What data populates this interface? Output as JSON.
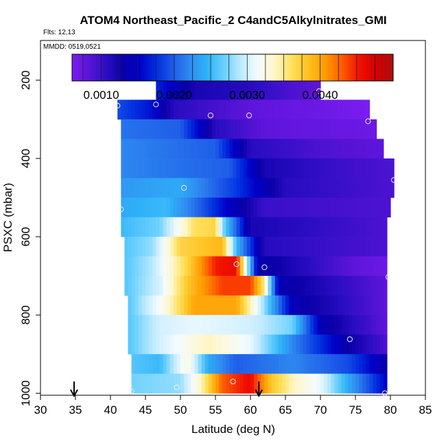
{
  "chart_data": {
    "type": "heatmap",
    "title": "ATOM4 Northeast_Pacific_2 C4andC5Alkylnitrates_GMI",
    "flights_note": "Flts: 12,13",
    "date_note": "MMDD: 0519,0521",
    "xlabel": "Latitude (deg N)",
    "ylabel": "PSXC (mbar)",
    "xlim": [
      30,
      85
    ],
    "ylim": [
      1000,
      100
    ],
    "x_ticks": [
      30,
      35,
      40,
      45,
      50,
      55,
      60,
      65,
      70,
      75,
      80,
      85
    ],
    "y_ticks": [
      200,
      400,
      600,
      800,
      1000
    ],
    "colorbar": {
      "range": [
        0.0006,
        0.005
      ],
      "tick_values": [
        0.001,
        0.002,
        0.003,
        0.004
      ],
      "tick_labels": [
        "0.0010",
        "0.0020",
        "0.0030",
        "0.0040"
      ],
      "colors": [
        "#7a1df0",
        "#5a14d8",
        "#2d0ec4",
        "#0a00a8",
        "#0000c8",
        "#0030e0",
        "#1f5ce8",
        "#2f8cf0",
        "#2fb2f8",
        "#6ad0ff",
        "#bfeaff",
        "#f4fbff",
        "#fff6c8",
        "#ffe05a",
        "#ffc020",
        "#ff9a00",
        "#ff5a00",
        "#f01000",
        "#d20000",
        "#aa1010"
      ]
    },
    "bands": [
      {
        "pressure": 225,
        "lat_start": 46.5,
        "lat_end": 70,
        "stops": [
          [
            46.5,
            0.0017
          ],
          [
            52,
            0.0012
          ],
          [
            60,
            0.0011
          ],
          [
            66,
            0.0009
          ],
          [
            70,
            0.0008
          ]
        ]
      },
      {
        "pressure": 275,
        "lat_start": 41,
        "lat_end": 77,
        "stops": [
          [
            41,
            0.0019
          ],
          [
            46,
            0.0016
          ],
          [
            49,
            0.0011
          ],
          [
            60,
            0.0008
          ],
          [
            70,
            0.0007
          ],
          [
            77,
            0.0006
          ]
        ]
      },
      {
        "pressure": 325,
        "lat_start": 41.5,
        "lat_end": 78,
        "stops": [
          [
            41.5,
            0.0021
          ],
          [
            50,
            0.002
          ],
          [
            55,
            0.0011
          ],
          [
            62,
            0.0008
          ],
          [
            78,
            0.0007
          ]
        ]
      },
      {
        "pressure": 375,
        "lat_start": 41.5,
        "lat_end": 79,
        "stops": [
          [
            41.5,
            0.0022
          ],
          [
            55,
            0.002
          ],
          [
            60,
            0.0011
          ],
          [
            70,
            0.0009
          ],
          [
            79,
            0.0008
          ]
        ]
      },
      {
        "pressure": 425,
        "lat_start": 41.5,
        "lat_end": 80.5,
        "stops": [
          [
            41.5,
            0.0022
          ],
          [
            57,
            0.002
          ],
          [
            62,
            0.0012
          ],
          [
            72,
            0.001
          ],
          [
            80.5,
            0.0009
          ]
        ]
      },
      {
        "pressure": 475,
        "lat_start": 41.5,
        "lat_end": 80.5,
        "stops": [
          [
            41.5,
            0.0023
          ],
          [
            50,
            0.0024
          ],
          [
            58,
            0.0018
          ],
          [
            65,
            0.0011
          ],
          [
            80.5,
            0.0009
          ]
        ]
      },
      {
        "pressure": 525,
        "lat_start": 41.5,
        "lat_end": 80,
        "stops": [
          [
            41.5,
            0.0024
          ],
          [
            48,
            0.0025
          ],
          [
            52,
            0.0021
          ],
          [
            56,
            0.0016
          ],
          [
            62,
            0.001
          ],
          [
            80,
            0.0009
          ]
        ]
      },
      {
        "pressure": 575,
        "lat_start": 41.5,
        "lat_end": 79.5,
        "stops": [
          [
            41.5,
            0.0025
          ],
          [
            47,
            0.0027
          ],
          [
            52,
            0.0036
          ],
          [
            55,
            0.0037
          ],
          [
            56,
            0.0028
          ],
          [
            60,
            0.0012
          ],
          [
            79.5,
            0.0009
          ]
        ]
      },
      {
        "pressure": 625,
        "lat_start": 42,
        "lat_end": 79.5,
        "stops": [
          [
            42,
            0.0026
          ],
          [
            46,
            0.0028
          ],
          [
            50,
            0.0037
          ],
          [
            56,
            0.0039
          ],
          [
            58,
            0.0025
          ],
          [
            62,
            0.0011
          ],
          [
            79.5,
            0.0009
          ]
        ]
      },
      {
        "pressure": 675,
        "lat_start": 42,
        "lat_end": 79.5,
        "stops": [
          [
            42,
            0.0026
          ],
          [
            46,
            0.0029
          ],
          [
            51,
            0.0037
          ],
          [
            55,
            0.0045
          ],
          [
            58,
            0.0046
          ],
          [
            59,
            0.0035
          ],
          [
            61,
            0.0014
          ],
          [
            75,
            0.0008
          ],
          [
            79.5,
            0.0007
          ]
        ]
      },
      {
        "pressure": 725,
        "lat_start": 42,
        "lat_end": 79.5,
        "stops": [
          [
            42,
            0.0026
          ],
          [
            47,
            0.003
          ],
          [
            51,
            0.0038
          ],
          [
            56,
            0.0044
          ],
          [
            60,
            0.0044
          ],
          [
            62,
            0.0035
          ],
          [
            64,
            0.0014
          ],
          [
            79.5,
            0.0008
          ]
        ]
      },
      {
        "pressure": 775,
        "lat_start": 42.5,
        "lat_end": 79.5,
        "stops": [
          [
            42.5,
            0.0026
          ],
          [
            48,
            0.0033
          ],
          [
            52,
            0.004
          ],
          [
            58,
            0.004
          ],
          [
            62,
            0.0028
          ],
          [
            66,
            0.0014
          ],
          [
            79.5,
            0.0008
          ]
        ]
      },
      {
        "pressure": 825,
        "lat_start": 42.5,
        "lat_end": 79.5,
        "stops": [
          [
            42.5,
            0.0026
          ],
          [
            47,
            0.003
          ],
          [
            52,
            0.0031
          ],
          [
            60,
            0.003
          ],
          [
            66,
            0.0027
          ],
          [
            70,
            0.0014
          ],
          [
            79.5,
            0.0008
          ]
        ]
      },
      {
        "pressure": 875,
        "lat_start": 42.5,
        "lat_end": 79.5,
        "stops": [
          [
            42.5,
            0.0026
          ],
          [
            47,
            0.003
          ],
          [
            54,
            0.0034
          ],
          [
            60,
            0.0031
          ],
          [
            66,
            0.0022
          ],
          [
            74,
            0.0013
          ],
          [
            79.5,
            0.0009
          ]
        ]
      },
      {
        "pressure": 925,
        "lat_start": 43,
        "lat_end": 79.5,
        "stops": [
          [
            43,
            0.0026
          ],
          [
            47,
            0.0025
          ],
          [
            51,
            0.0033
          ],
          [
            54,
            0.0024
          ],
          [
            58,
            0.002
          ],
          [
            66,
            0.0022
          ],
          [
            74,
            0.0019
          ],
          [
            79.5,
            0.0013
          ]
        ]
      },
      {
        "pressure": 975,
        "lat_start": 43,
        "lat_end": 79.5,
        "stops": [
          [
            43,
            0.0027
          ],
          [
            50,
            0.0028
          ],
          [
            53,
            0.0034
          ],
          [
            56,
            0.0043
          ],
          [
            60,
            0.0046
          ],
          [
            63,
            0.0038
          ],
          [
            66,
            0.0034
          ],
          [
            70,
            0.0031
          ],
          [
            74,
            0.0024
          ],
          [
            79.5,
            0.0015
          ]
        ]
      }
    ],
    "sample_points": [
      {
        "lat": 69.8,
        "pressure": 228
      },
      {
        "lat": 46.5,
        "pressure": 262
      },
      {
        "lat": 41.0,
        "pressure": 265
      },
      {
        "lat": 54.3,
        "pressure": 290
      },
      {
        "lat": 59.8,
        "pressure": 290
      },
      {
        "lat": 76.8,
        "pressure": 305
      },
      {
        "lat": 50.5,
        "pressure": 475
      },
      {
        "lat": 41.5,
        "pressure": 530
      },
      {
        "lat": 80.5,
        "pressure": 455
      },
      {
        "lat": 58.0,
        "pressure": 670
      },
      {
        "lat": 62.0,
        "pressure": 678
      },
      {
        "lat": 79.7,
        "pressure": 703
      },
      {
        "lat": 74.2,
        "pressure": 862
      },
      {
        "lat": 57.5,
        "pressure": 970
      },
      {
        "lat": 49.5,
        "pressure": 985
      },
      {
        "lat": 43.0,
        "pressure": 995
      },
      {
        "lat": 79.2,
        "pressure": 1000
      }
    ],
    "arrows": [
      {
        "lat": 34.8
      },
      {
        "lat": 61.2
      }
    ]
  }
}
